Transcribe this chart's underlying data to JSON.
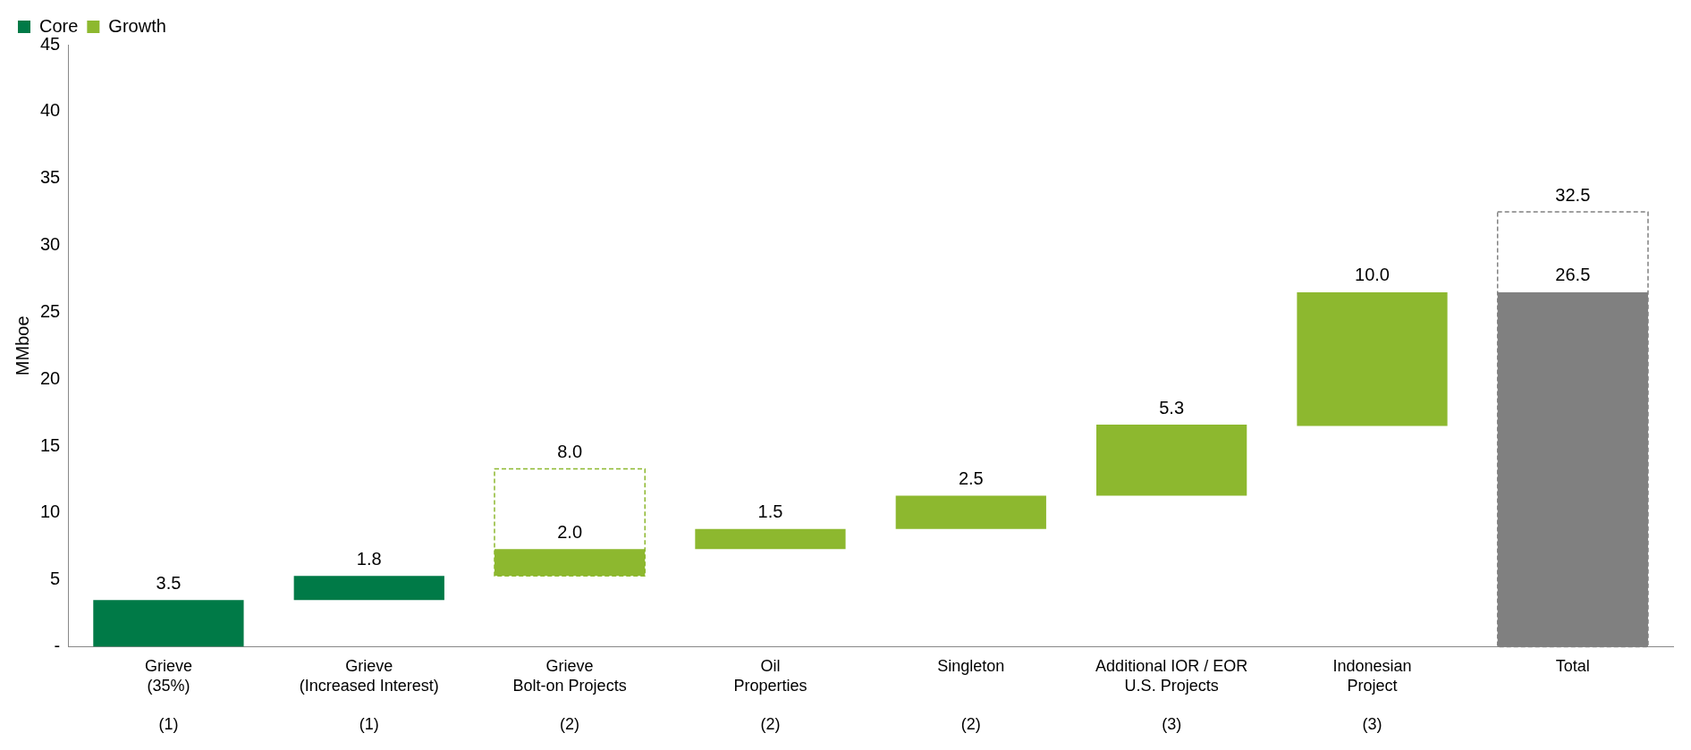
{
  "chart_data": {
    "type": "bar",
    "ylabel": "MMboe",
    "categories": [
      "Grieve\n(35%)\n\n(1)",
      "Grieve\n(Increased Interest)\n\n(1)",
      "Grieve\nBolt-on Projects\n\n(2)",
      "Oil\nProperties\n\n(2)",
      "Singleton\n\n\n(2)",
      "Additional IOR / EOR\nU.S. Projects\n\n(3)",
      "Indonesian\nProject\n\n(3)",
      "Total\n\n\n"
    ],
    "series": [
      {
        "name": "Core",
        "color": "#007a47",
        "values": [
          3.5,
          1.8,
          null,
          null,
          null,
          null,
          null,
          null
        ],
        "base": [
          0,
          3.5,
          null,
          null,
          null,
          null,
          null,
          null
        ],
        "value_labels": [
          "3.5",
          "1.8",
          null,
          null,
          null,
          null,
          null,
          null
        ]
      },
      {
        "name": "Growth",
        "color": "#8db82f",
        "values": [
          null,
          null,
          2.0,
          1.5,
          2.5,
          5.3,
          10.0,
          null
        ],
        "base": [
          null,
          null,
          5.3,
          7.3,
          8.8,
          11.3,
          16.5,
          null
        ],
        "value_labels": [
          null,
          null,
          "2.0",
          "1.5",
          "2.5",
          "5.3",
          "10.0",
          null
        ]
      },
      {
        "color": "#808080",
        "values": [
          null,
          null,
          null,
          null,
          null,
          null,
          null,
          26.5
        ],
        "base": [
          null,
          null,
          null,
          null,
          null,
          null,
          null,
          0
        ],
        "value_labels": [
          null,
          null,
          null,
          null,
          null,
          null,
          null,
          "26.5"
        ]
      },
      {
        "line_style": "dashed",
        "colors": [
          null,
          null,
          "#8db82f",
          null,
          null,
          null,
          null,
          "#808080"
        ],
        "values": [
          null,
          null,
          8.0,
          null,
          null,
          null,
          null,
          32.5
        ],
        "base": [
          null,
          null,
          5.3,
          null,
          null,
          null,
          null,
          0
        ],
        "value_labels": [
          null,
          null,
          "8.0",
          null,
          null,
          null,
          null,
          "32.5"
        ]
      }
    ],
    "ylim": [
      0,
      45
    ],
    "yticks": [
      {
        "value": 0,
        "label": "-"
      },
      5,
      10,
      15,
      20,
      25,
      30,
      35,
      40,
      45
    ],
    "grid": false,
    "legend": "top left"
  }
}
